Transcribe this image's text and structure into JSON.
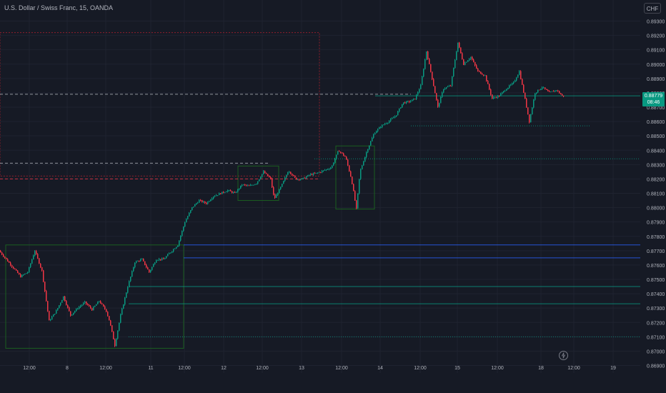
{
  "title": "U.S. Dollar / Swiss Franc, 15, OANDA",
  "currency": "CHF",
  "last_price": "0.88779",
  "countdown": "08:46",
  "colors": {
    "background": "#161a25",
    "up": "#089981",
    "down": "#f23645",
    "grid": "#1f2330",
    "axis_text": "#b2b5be",
    "zone_green": "#1b5e20",
    "zone_red": "#8e1e2c",
    "level_blue": "#2962ff"
  },
  "chart_data": {
    "type": "candlestick",
    "yaxis": {
      "ticks": [
        "0.89300",
        "0.89200",
        "0.89100",
        "0.89000",
        "0.88900",
        "0.88800",
        "0.88700",
        "0.88600",
        "0.88500",
        "0.88400",
        "0.88300",
        "0.88200",
        "0.88100",
        "0.88000",
        "0.87900",
        "0.87800",
        "0.87700",
        "0.87600",
        "0.87500",
        "0.87400",
        "0.87300",
        "0.87200",
        "0.87100",
        "0.87000",
        "0.86900"
      ],
      "min": 0.869,
      "max": 0.893
    },
    "xaxis": {
      "ticks": [
        "12:00",
        "8",
        "12:00",
        "11",
        "12:00",
        "12",
        "12:00",
        "13",
        "12:00",
        "14",
        "12:00",
        "15",
        "12:00",
        "18",
        "12:00",
        "19"
      ]
    },
    "price_path": [
      [
        0,
        0.877
      ],
      [
        10,
        0.8764
      ],
      [
        20,
        0.8758
      ],
      [
        30,
        0.8752
      ],
      [
        40,
        0.8755
      ],
      [
        50,
        0.877
      ],
      [
        60,
        0.8756
      ],
      [
        70,
        0.8721
      ],
      [
        80,
        0.8728
      ],
      [
        90,
        0.8738
      ],
      [
        100,
        0.8725
      ],
      [
        110,
        0.873
      ],
      [
        120,
        0.8734
      ],
      [
        130,
        0.8729
      ],
      [
        140,
        0.8735
      ],
      [
        150,
        0.8728
      ],
      [
        155,
        0.872
      ],
      [
        162,
        0.8704
      ],
      [
        170,
        0.8725
      ],
      [
        180,
        0.8745
      ],
      [
        190,
        0.8762
      ],
      [
        200,
        0.8764
      ],
      [
        210,
        0.8755
      ],
      [
        220,
        0.8764
      ],
      [
        230,
        0.8764
      ],
      [
        240,
        0.8769
      ],
      [
        250,
        0.8774
      ],
      [
        260,
        0.879
      ],
      [
        270,
        0.88
      ],
      [
        280,
        0.8805
      ],
      [
        290,
        0.8803
      ],
      [
        300,
        0.8808
      ],
      [
        310,
        0.881
      ],
      [
        320,
        0.8812
      ],
      [
        330,
        0.881
      ],
      [
        340,
        0.8816
      ],
      [
        350,
        0.8815
      ],
      [
        360,
        0.8817
      ],
      [
        370,
        0.8825
      ],
      [
        380,
        0.882
      ],
      [
        385,
        0.8806
      ],
      [
        395,
        0.8815
      ],
      [
        405,
        0.8826
      ],
      [
        415,
        0.882
      ],
      [
        425,
        0.882
      ],
      [
        435,
        0.8823
      ],
      [
        445,
        0.8824
      ],
      [
        455,
        0.8826
      ],
      [
        465,
        0.8828
      ],
      [
        475,
        0.884
      ],
      [
        485,
        0.8835
      ],
      [
        493,
        0.882
      ],
      [
        500,
        0.8799
      ],
      [
        505,
        0.8825
      ],
      [
        515,
        0.884
      ],
      [
        525,
        0.8852
      ],
      [
        535,
        0.8857
      ],
      [
        545,
        0.886
      ],
      [
        555,
        0.8864
      ],
      [
        565,
        0.8873
      ],
      [
        575,
        0.8874
      ],
      [
        582,
        0.8876
      ],
      [
        590,
        0.8885
      ],
      [
        598,
        0.8909
      ],
      [
        606,
        0.889
      ],
      [
        614,
        0.887
      ],
      [
        622,
        0.8883
      ],
      [
        632,
        0.8885
      ],
      [
        642,
        0.8915
      ],
      [
        650,
        0.89
      ],
      [
        660,
        0.8905
      ],
      [
        670,
        0.8895
      ],
      [
        680,
        0.8892
      ],
      [
        690,
        0.8876
      ],
      [
        700,
        0.8878
      ],
      [
        710,
        0.8883
      ],
      [
        720,
        0.8887
      ],
      [
        728,
        0.8895
      ],
      [
        735,
        0.8878
      ],
      [
        742,
        0.886
      ],
      [
        750,
        0.888
      ],
      [
        760,
        0.8884
      ],
      [
        770,
        0.888
      ],
      [
        780,
        0.8882
      ],
      [
        788,
        0.88779
      ]
    ],
    "zones": [
      {
        "color": "zone_red",
        "y1": 0.8922,
        "y2": 0.8822
      },
      {
        "color": "zone_green",
        "y1": 0.8774,
        "y2": 0.8702
      },
      {
        "color": "zone_green",
        "y1": 0.8843,
        "y2": 0.8799
      },
      {
        "color": "zone_green",
        "y1": 0.8829,
        "y2": 0.8805
      }
    ],
    "levels": [
      {
        "value": 0.88779,
        "color": "up",
        "style": "solid"
      },
      {
        "value": 0.8879,
        "color": "axis_text",
        "style": "dashed"
      },
      {
        "value": 0.8831,
        "color": "axis_text",
        "style": "dashed"
      },
      {
        "value": 0.882,
        "color": "down",
        "style": "dashed"
      },
      {
        "value": 0.8774,
        "color": "level_blue",
        "style": "solid"
      },
      {
        "value": 0.8765,
        "color": "level_blue",
        "style": "solid"
      },
      {
        "value": 0.8745,
        "color": "up",
        "style": "solid"
      },
      {
        "value": 0.8733,
        "color": "up",
        "style": "solid"
      },
      {
        "value": 0.8857,
        "color": "up",
        "style": "dotted"
      },
      {
        "value": 0.871,
        "color": "up",
        "style": "dotted"
      },
      {
        "value": 0.8834,
        "color": "up",
        "style": "dotted"
      }
    ]
  }
}
